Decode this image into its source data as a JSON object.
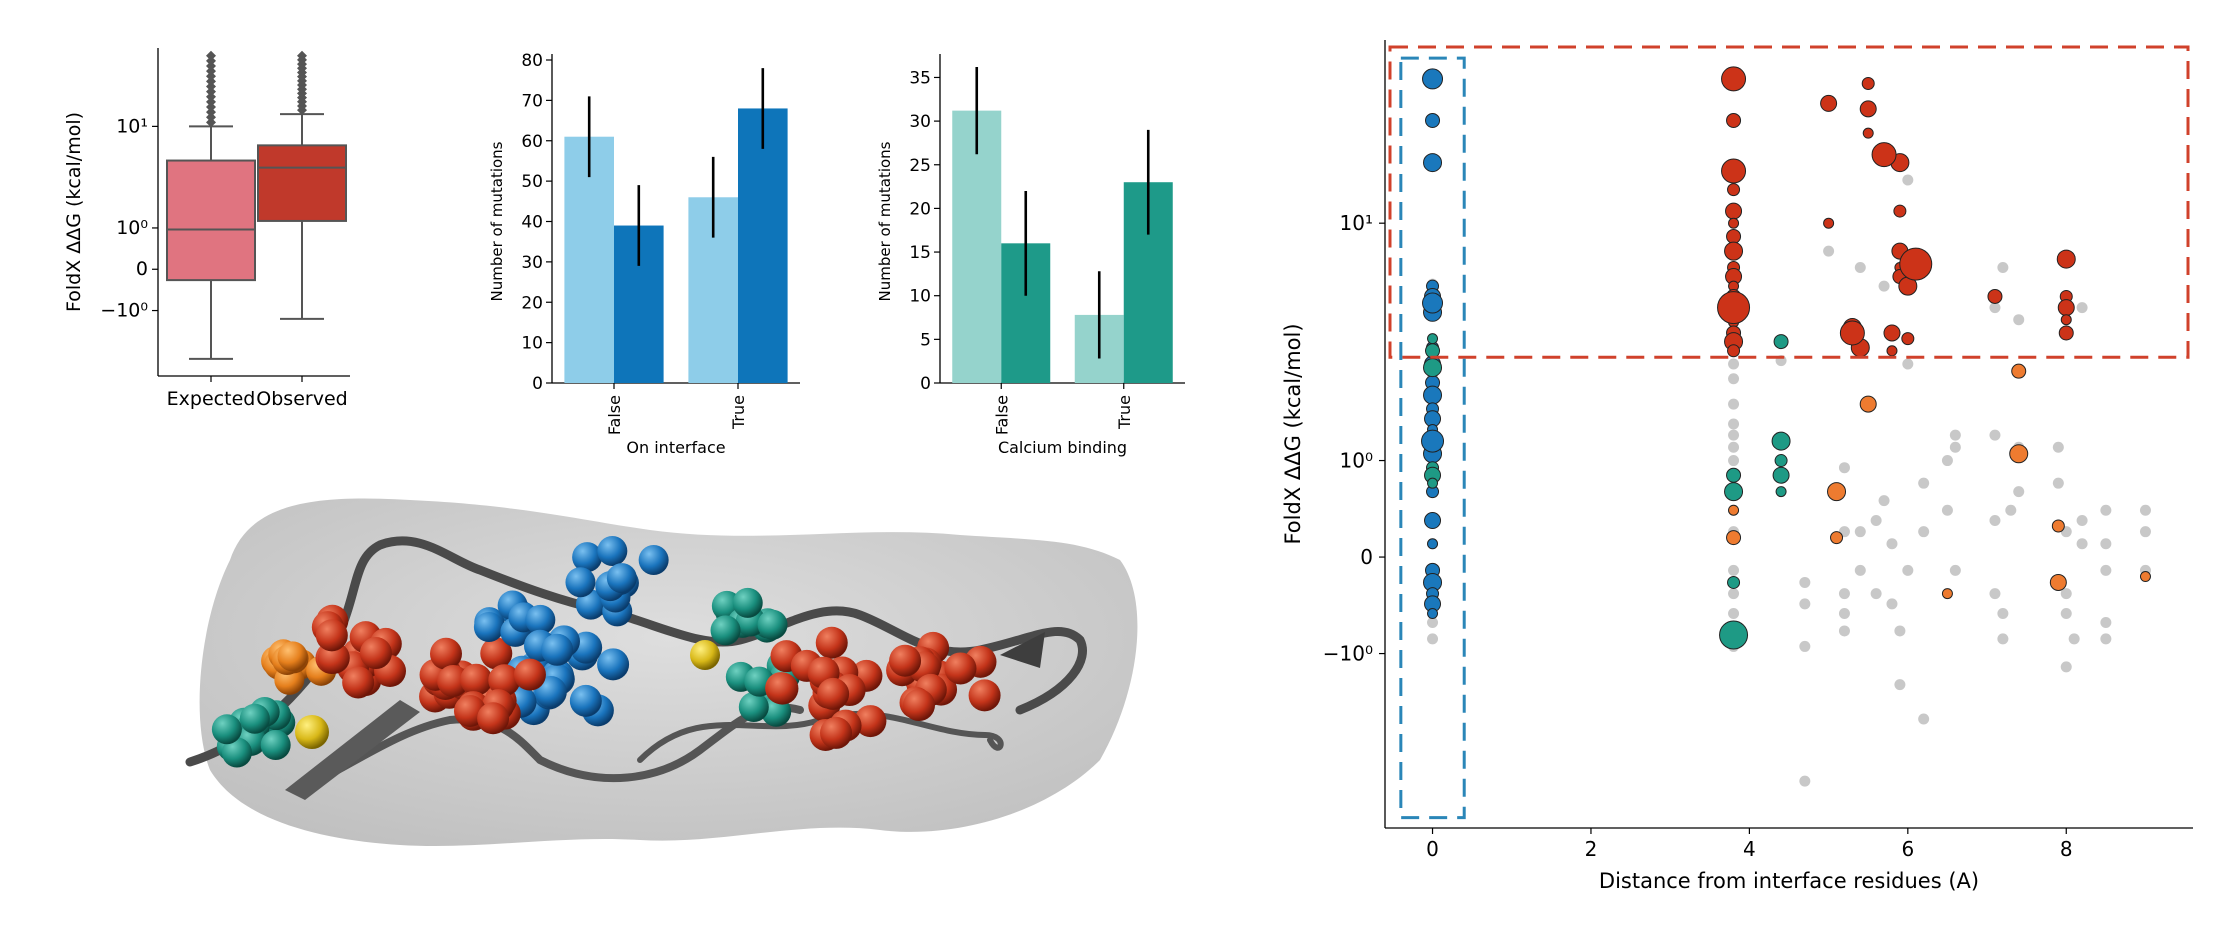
{
  "colors": {
    "expected_box": "#e07480",
    "observed_box": "#c0392b",
    "interface_false": "#8ecde9",
    "interface_true": "#0e75ba",
    "calcium_false": "#95d3cc",
    "calcium_true": "#1e9a89",
    "scatter_grey": "#c8c8c8",
    "scatter_red": "#cc3318",
    "scatter_blue": "#1a78bc",
    "scatter_teal": "#1e9a85",
    "scatter_orange": "#ee7b30",
    "highlight_red": "#d0412b",
    "highlight_blue": "#2a86b8"
  },
  "chart_data": [
    {
      "id": "boxplot",
      "type": "box",
      "ylabel": "FoldX ΔΔG (kcal/mol)",
      "categories": [
        "Expected",
        "Observed"
      ],
      "yscale": "symlog",
      "ytick_labels": [
        "10¹",
        "10⁰",
        "0",
        "−10⁰"
      ],
      "ytick_values": [
        10,
        1,
        0,
        -1
      ],
      "ylim": [
        -5,
        40
      ],
      "boxes": [
        {
          "name": "Expected",
          "whisker_low": -3.5,
          "q1": -0.2,
          "median": 0.95,
          "q3": 5.2,
          "whisker_high": 10,
          "outlier_max": 35
        },
        {
          "name": "Observed",
          "whisker_low": -1.3,
          "q1": 1.25,
          "median": 4.5,
          "q3": 7.0,
          "whisker_high": 12.5,
          "outlier_max": 35
        }
      ]
    },
    {
      "id": "interface_bars",
      "type": "bar",
      "xlabel": "On interface",
      "ylabel": "Number of mutations",
      "categories": [
        "False",
        "True"
      ],
      "ylim": [
        0,
        80
      ],
      "yticks": [
        0,
        10,
        20,
        30,
        40,
        50,
        60,
        70,
        80
      ],
      "series": [
        {
          "values": [
            61,
            46
          ],
          "errors": [
            10,
            10
          ]
        },
        {
          "values": [
            39,
            68
          ],
          "errors": [
            10,
            10
          ]
        }
      ]
    },
    {
      "id": "calcium_bars",
      "type": "bar",
      "xlabel": "Calcium binding",
      "ylabel": "Number of mutations",
      "categories": [
        "False",
        "True"
      ],
      "ylim": [
        0,
        37
      ],
      "yticks": [
        0,
        5,
        10,
        15,
        20,
        25,
        30,
        35
      ],
      "series": [
        {
          "values": [
            31.2,
            7.8
          ],
          "errors": [
            5,
            5
          ]
        },
        {
          "values": [
            16,
            23
          ],
          "errors": [
            6,
            6
          ]
        }
      ]
    },
    {
      "id": "distance_scatter",
      "type": "scatter",
      "xlabel": "Distance from interface residues (A)",
      "ylabel": "FoldX ΔΔG (kcal/mol)",
      "xlim": [
        -0.6,
        9.6
      ],
      "xticks": [
        0,
        2,
        4,
        6,
        8
      ],
      "yscale": "symlog",
      "ytick_labels": [
        "10¹",
        "10⁰",
        "0",
        "−10⁰"
      ],
      "ytick_values": [
        10,
        1,
        0,
        -1
      ],
      "ylim": [
        -6,
        40
      ],
      "highlight_boxes": [
        {
          "x": [
            -0.6,
            9.6
          ],
          "y": [
            3.2,
            38
          ],
          "color": "red"
        },
        {
          "x": [
            -0.4,
            0.4
          ],
          "y": [
            -5.5,
            35
          ],
          "color": "blue"
        }
      ],
      "series": [
        {
          "group": "grey",
          "points": [
            [
              0,
              -0.8
            ],
            [
              0,
              -0.6
            ],
            [
              0,
              -0.4
            ],
            [
              0,
              -0.2
            ],
            [
              0,
              0.1
            ],
            [
              0,
              0.3
            ],
            [
              0,
              0.6
            ],
            [
              0,
              0.8
            ],
            [
              0,
              1.4
            ],
            [
              0,
              1.6
            ],
            [
              0,
              1.9
            ],
            [
              0,
              2.2
            ],
            [
              0,
              2.7
            ],
            [
              0,
              3.1
            ],
            [
              0,
              3.5
            ],
            [
              0,
              4.8
            ],
            [
              0,
              6.1
            ],
            [
              3.8,
              -0.9
            ],
            [
              3.8,
              -0.7
            ],
            [
              3.8,
              -0.5
            ],
            [
              3.8,
              -0.3
            ],
            [
              3.8,
              -0.1
            ],
            [
              3.8,
              0.2
            ],
            [
              3.8,
              0.4
            ],
            [
              3.8,
              0.6
            ],
            [
              3.8,
              0.8
            ],
            [
              3.8,
              1.0
            ],
            [
              3.8,
              1.2
            ],
            [
              3.8,
              1.4
            ],
            [
              3.8,
              1.6
            ],
            [
              3.8,
              2.0
            ],
            [
              3.8,
              2.6
            ],
            [
              3.8,
              3.0
            ],
            [
              3.8,
              3.4
            ],
            [
              3.8,
              4.0
            ],
            [
              3.8,
              5.0
            ],
            [
              4.4,
              3.1
            ],
            [
              4.7,
              -0.2
            ],
            [
              4.7,
              -0.4
            ],
            [
              4.7,
              -0.9
            ],
            [
              4.7,
              -4.0
            ],
            [
              5.2,
              -0.5
            ],
            [
              5.2,
              -0.3
            ],
            [
              5.2,
              0.2
            ],
            [
              5.2,
              0.9
            ],
            [
              5.2,
              -0.7
            ],
            [
              5.4,
              -0.1
            ],
            [
              5.4,
              0.2
            ],
            [
              5.6,
              0.3
            ],
            [
              5.6,
              -0.3
            ],
            [
              5.7,
              0.5
            ],
            [
              5.8,
              0.1
            ],
            [
              5.8,
              -0.4
            ],
            [
              5.9,
              -1.5
            ],
            [
              5.9,
              -0.7
            ],
            [
              6.0,
              -0.1
            ],
            [
              6.2,
              -2.2
            ],
            [
              6.2,
              0.2
            ],
            [
              6.2,
              0.7
            ],
            [
              6.5,
              0.4
            ],
            [
              6.5,
              1.0
            ],
            [
              6.6,
              1.2
            ],
            [
              6.6,
              -0.1
            ],
            [
              6.6,
              1.4
            ],
            [
              7.1,
              -0.3
            ],
            [
              7.1,
              0.3
            ],
            [
              7.1,
              1.4
            ],
            [
              7.2,
              -0.8
            ],
            [
              7.2,
              -0.5
            ],
            [
              7.3,
              0.4
            ],
            [
              7.4,
              0.6
            ],
            [
              7.4,
              1.2
            ],
            [
              7.9,
              0.7
            ],
            [
              7.9,
              1.2
            ],
            [
              8.0,
              -0.3
            ],
            [
              8.0,
              0.2
            ],
            [
              8.0,
              -0.5
            ],
            [
              8.0,
              -1.2
            ],
            [
              8.1,
              -0.8
            ],
            [
              8.2,
              0.1
            ],
            [
              8.2,
              0.3
            ],
            [
              8.5,
              -0.6
            ],
            [
              8.5,
              0.1
            ],
            [
              8.5,
              -0.8
            ],
            [
              8.5,
              0.4
            ],
            [
              8.5,
              -0.1
            ],
            [
              9.0,
              0.2
            ],
            [
              9.0,
              0.4
            ],
            [
              9.0,
              -0.1
            ],
            [
              5.0,
              8.0
            ],
            [
              5.4,
              7.0
            ],
            [
              5.7,
              6.0
            ],
            [
              7.1,
              5.0
            ],
            [
              7.2,
              7.0
            ],
            [
              7.4,
              4.5
            ],
            [
              8.2,
              5.0
            ],
            [
              5.3,
              4.0
            ],
            [
              6.0,
              3.0
            ],
            [
              6.0,
              14.0
            ]
          ]
        },
        {
          "group": "red",
          "points": [
            [
              3.8,
              30
            ],
            [
              3.8,
              22
            ],
            [
              3.8,
              15
            ],
            [
              3.8,
              13
            ],
            [
              3.8,
              11
            ],
            [
              3.8,
              10
            ],
            [
              3.8,
              9
            ],
            [
              3.8,
              8
            ],
            [
              3.8,
              7
            ],
            [
              3.8,
              6.5
            ],
            [
              3.8,
              6
            ],
            [
              3.8,
              5.5
            ],
            [
              3.8,
              5.2
            ],
            [
              3.8,
              5.0
            ],
            [
              3.8,
              4.7
            ],
            [
              3.8,
              4.4
            ],
            [
              3.8,
              4.0
            ],
            [
              3.8,
              3.7
            ],
            [
              3.8,
              3.4
            ],
            [
              5.0,
              25
            ],
            [
              5.0,
              10
            ],
            [
              5.3,
              4.0
            ],
            [
              5.3,
              4.2
            ],
            [
              5.5,
              29
            ],
            [
              5.5,
              24
            ],
            [
              5.5,
              20
            ],
            [
              5.7,
              17
            ],
            [
              5.9,
              16
            ],
            [
              5.9,
              11
            ],
            [
              5.9,
              8
            ],
            [
              5.9,
              7
            ],
            [
              5.9,
              6.5
            ],
            [
              6.0,
              6
            ],
            [
              6.1,
              7.2
            ],
            [
              5.8,
              4.0
            ],
            [
              5.8,
              3.4
            ],
            [
              7.1,
              5.5
            ],
            [
              8.0,
              7.5
            ],
            [
              8.0,
              5.5
            ],
            [
              8.0,
              5.0
            ],
            [
              8.0,
              4.5
            ],
            [
              8.0,
              4.0
            ],
            [
              5.4,
              3.5
            ],
            [
              6.0,
              3.8
            ]
          ]
        },
        {
          "group": "blue",
          "points": [
            [
              0,
              30
            ],
            [
              0,
              22
            ],
            [
              0,
              16
            ],
            [
              0,
              6.0
            ],
            [
              0,
              5.5
            ],
            [
              0,
              5.2
            ],
            [
              0,
              5.0
            ],
            [
              0,
              4.8
            ],
            [
              0,
              3.5
            ],
            [
              0,
              3.0
            ],
            [
              0,
              2.8
            ],
            [
              0,
              2.5
            ],
            [
              0,
              2.2
            ],
            [
              0,
              1.9
            ],
            [
              0,
              1.7
            ],
            [
              0,
              1.5
            ],
            [
              0,
              1.3
            ],
            [
              0,
              1.1
            ],
            [
              0,
              0.6
            ],
            [
              0,
              0.3
            ],
            [
              0,
              0.1
            ],
            [
              0,
              -0.1
            ],
            [
              0,
              -0.2
            ],
            [
              0,
              -0.3
            ],
            [
              0,
              -0.4
            ],
            [
              0,
              -0.5
            ]
          ]
        },
        {
          "group": "teal",
          "points": [
            [
              0,
              3.8
            ],
            [
              0,
              3.4
            ],
            [
              0,
              2.9
            ],
            [
              0,
              0.9
            ],
            [
              0,
              0.8
            ],
            [
              0,
              0.7
            ],
            [
              4.4,
              3.7
            ],
            [
              4.4,
              1.3
            ],
            [
              4.4,
              1.0
            ],
            [
              4.4,
              0.8
            ],
            [
              4.4,
              0.6
            ],
            [
              3.8,
              0.8
            ],
            [
              3.8,
              0.6
            ],
            [
              3.8,
              -0.2
            ],
            [
              3.8,
              -0.75
            ]
          ]
        },
        {
          "group": "orange",
          "points": [
            [
              3.8,
              0.4
            ],
            [
              3.8,
              0.15
            ],
            [
              5.1,
              0.6
            ],
            [
              5.1,
              0.15
            ],
            [
              5.5,
              2.0
            ],
            [
              6.5,
              -0.3
            ],
            [
              7.4,
              2.8
            ],
            [
              7.4,
              1.1
            ],
            [
              7.9,
              0.25
            ],
            [
              7.9,
              -0.2
            ],
            [
              9.0,
              -0.15
            ]
          ]
        }
      ]
    }
  ]
}
